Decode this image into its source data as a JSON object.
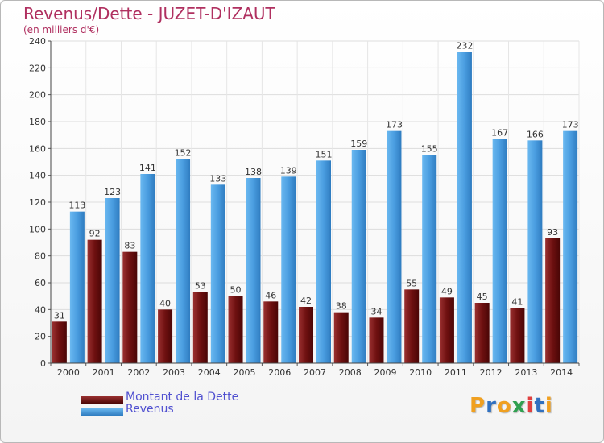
{
  "header": {
    "title": "Revenus/Dette - JUZET-D'IZAUT",
    "subtitle": "(en milliers d'€)"
  },
  "logo": {
    "letters": [
      "P",
      "r",
      "o",
      "x",
      "i",
      "t",
      "i"
    ],
    "colors": [
      "#f0a020",
      "#3070c0",
      "#f0a020",
      "#30a050",
      "#e04040",
      "#3070c0",
      "#f0a020"
    ]
  },
  "chart_data": {
    "type": "bar",
    "categories": [
      "2000",
      "2001",
      "2002",
      "2003",
      "2004",
      "2005",
      "2006",
      "2007",
      "2008",
      "2009",
      "2010",
      "2011",
      "2012",
      "2013",
      "2014"
    ],
    "series": [
      {
        "name": "Montant de la Dette",
        "color": "#7a1a1a",
        "values": [
          31,
          92,
          83,
          40,
          53,
          50,
          46,
          42,
          38,
          34,
          55,
          49,
          45,
          41,
          93
        ]
      },
      {
        "name": "Revenus",
        "color": "#4a9de0",
        "values": [
          113,
          123,
          141,
          152,
          133,
          138,
          139,
          151,
          159,
          173,
          155,
          232,
          167,
          166,
          173
        ]
      }
    ],
    "ylim": [
      0,
      240
    ],
    "yticks": [
      0,
      20,
      40,
      60,
      80,
      100,
      120,
      140,
      160,
      180,
      200,
      220,
      240
    ],
    "grid": true,
    "legend_position": "bottom-left"
  }
}
